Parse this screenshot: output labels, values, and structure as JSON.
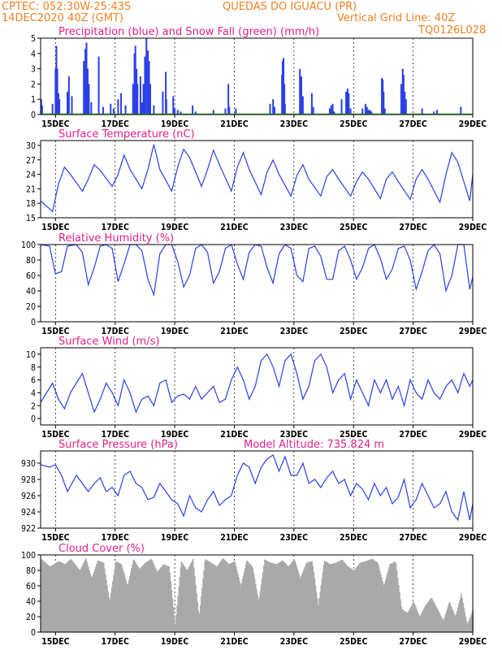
{
  "header": {
    "line1_left": "CPTEC:  052:30W-25:43S",
    "line1_right": "QUEDAS DO IGUACU (PR)",
    "line2_left": "14DEC2020 40Z (GMT)",
    "line2_mid": "Vertical Grid Line: 40Z",
    "line2_right": "TQ0126L028"
  },
  "colors": {
    "blue": "#2b3fe6",
    "green": "#22aa22",
    "gray": "#a9a9a9",
    "title": "#e0208a",
    "header": "#f08020"
  },
  "x_axis": {
    "start_day": 14.5,
    "end_day": 29.0,
    "ticks": [
      15,
      17,
      19,
      21,
      23,
      25,
      27,
      29
    ],
    "tick_labels": [
      "15DEC",
      "17DEC",
      "19DEC",
      "21DEC",
      "23DEC",
      "25DEC",
      "27DEC",
      "29DEC"
    ]
  },
  "chart_data": [
    {
      "id": "precip",
      "type": "bar",
      "title": "Precipitation (blue) and Snow Fall (green) (mm/h)",
      "ylim": [
        0,
        5
      ],
      "yticks": [
        0,
        1,
        2,
        3,
        4,
        5
      ],
      "series": [
        {
          "name": "Precipitation",
          "color": "#2b3fe6",
          "points": [
            [
              14.52,
              1.0
            ],
            [
              14.55,
              0.6
            ],
            [
              14.9,
              0.7
            ],
            [
              15.0,
              3.0
            ],
            [
              15.03,
              4.5
            ],
            [
              15.06,
              3.0
            ],
            [
              15.1,
              1.4
            ],
            [
              15.13,
              1.0
            ],
            [
              15.4,
              1.5
            ],
            [
              15.45,
              2.5
            ],
            [
              15.55,
              1.2
            ],
            [
              15.95,
              3.5
            ],
            [
              16.0,
              4.3
            ],
            [
              16.04,
              4.7
            ],
            [
              16.08,
              3.0
            ],
            [
              16.12,
              2.0
            ],
            [
              16.2,
              0.8
            ],
            [
              16.45,
              3.8
            ],
            [
              16.6,
              0.5
            ],
            [
              16.85,
              0.7
            ],
            [
              16.95,
              0.4
            ],
            [
              17.1,
              1.0
            ],
            [
              17.2,
              1.4
            ],
            [
              17.35,
              0.6
            ],
            [
              17.6,
              2.0
            ],
            [
              17.65,
              4.0
            ],
            [
              17.68,
              4.5
            ],
            [
              17.72,
              3.0
            ],
            [
              17.75,
              2.0
            ],
            [
              17.85,
              2.5
            ],
            [
              17.9,
              0.8
            ],
            [
              17.95,
              2.0
            ],
            [
              18.0,
              3.8
            ],
            [
              18.05,
              5.0
            ],
            [
              18.1,
              4.2
            ],
            [
              18.14,
              3.5
            ],
            [
              18.18,
              2.0
            ],
            [
              18.3,
              0.6
            ],
            [
              18.6,
              1.5
            ],
            [
              18.7,
              2.8
            ],
            [
              18.72,
              1.0
            ],
            [
              18.95,
              1.2
            ],
            [
              19.0,
              0.4
            ],
            [
              19.1,
              0.3
            ],
            [
              19.2,
              0.2
            ],
            [
              19.6,
              0.6
            ],
            [
              19.7,
              0.2
            ],
            [
              20.3,
              0.3
            ],
            [
              20.7,
              0.4
            ],
            [
              20.8,
              2.0
            ],
            [
              20.83,
              0.5
            ],
            [
              21.05,
              0.4
            ],
            [
              22.2,
              0.7
            ],
            [
              22.3,
              1.0
            ],
            [
              22.35,
              0.5
            ],
            [
              22.6,
              2.6
            ],
            [
              22.62,
              3.5
            ],
            [
              22.65,
              3.7
            ],
            [
              22.68,
              2.0
            ],
            [
              22.7,
              0.7
            ],
            [
              23.2,
              3.0
            ],
            [
              23.25,
              2.5
            ],
            [
              23.3,
              1.2
            ],
            [
              23.6,
              1.4
            ],
            [
              23.65,
              0.5
            ],
            [
              24.2,
              0.4
            ],
            [
              24.25,
              0.6
            ],
            [
              24.3,
              0.7
            ],
            [
              24.35,
              0.2
            ],
            [
              24.6,
              1.0
            ],
            [
              24.75,
              1.5
            ],
            [
              24.8,
              1.7
            ],
            [
              24.84,
              1.4
            ],
            [
              24.9,
              0.4
            ],
            [
              25.3,
              0.4
            ],
            [
              25.4,
              0.7
            ],
            [
              25.45,
              0.5
            ],
            [
              25.5,
              0.3
            ],
            [
              25.55,
              0.3
            ],
            [
              25.6,
              0.2
            ],
            [
              25.95,
              2.4
            ],
            [
              25.98,
              2.3
            ],
            [
              26.01,
              1.5
            ],
            [
              26.05,
              0.4
            ],
            [
              26.6,
              2.0
            ],
            [
              26.65,
              3.0
            ],
            [
              26.68,
              2.6
            ],
            [
              26.72,
              1.5
            ],
            [
              26.76,
              1.0
            ],
            [
              27.3,
              0.4
            ],
            [
              27.7,
              0.2
            ],
            [
              27.8,
              0.3
            ],
            [
              28.6,
              0.5
            ]
          ]
        },
        {
          "name": "Snow Fall",
          "color": "#22aa22",
          "points": []
        }
      ]
    },
    {
      "id": "temp",
      "type": "line",
      "title": "Surface Temperature (nC)",
      "ylim": [
        15,
        31
      ],
      "yticks": [
        15,
        18,
        21,
        24,
        27,
        30
      ],
      "color": "#2b3fe6",
      "x": [
        14.5,
        14.9,
        15.1,
        15.3,
        15.5,
        15.9,
        16.1,
        16.3,
        16.5,
        16.9,
        17.1,
        17.3,
        17.5,
        17.9,
        18.1,
        18.3,
        18.5,
        18.9,
        19.1,
        19.3,
        19.5,
        19.9,
        20.1,
        20.3,
        20.5,
        20.9,
        21.1,
        21.3,
        21.5,
        21.9,
        22.1,
        22.3,
        22.5,
        22.9,
        23.1,
        23.3,
        23.5,
        23.9,
        24.1,
        24.3,
        24.5,
        24.9,
        25.1,
        25.3,
        25.5,
        25.9,
        26.1,
        26.3,
        26.5,
        26.9,
        27.1,
        27.3,
        27.5,
        27.9,
        28.1,
        28.3,
        28.5,
        28.9,
        29.0
      ],
      "values": [
        18.5,
        16.3,
        22,
        25.5,
        24,
        20.5,
        23,
        26,
        24.8,
        21.5,
        24,
        28,
        25,
        21,
        25,
        30.2,
        25,
        20.5,
        25.5,
        29.2,
        27.5,
        21.5,
        25,
        29,
        26,
        20.5,
        25.5,
        28.5,
        25,
        19.8,
        24.5,
        27,
        24,
        19.5,
        23.8,
        26,
        23,
        19.5,
        23.5,
        25,
        23,
        19.5,
        22.5,
        24.5,
        23,
        19,
        23,
        24.5,
        22.5,
        18.8,
        23,
        25,
        23,
        18.2,
        24,
        28.5,
        26.5,
        18.5,
        24
      ]
    },
    {
      "id": "rh",
      "type": "line",
      "title": "Relative Humidity (%)",
      "ylim": [
        0,
        100
      ],
      "yticks": [
        0,
        20,
        40,
        60,
        80,
        100
      ],
      "color": "#2b3fe6",
      "x": [
        14.5,
        14.8,
        15.0,
        15.2,
        15.4,
        15.7,
        15.9,
        16.1,
        16.3,
        16.5,
        16.7,
        16.9,
        17.1,
        17.3,
        17.5,
        17.7,
        17.9,
        18.1,
        18.3,
        18.5,
        18.7,
        18.9,
        19.1,
        19.3,
        19.5,
        19.7,
        19.9,
        20.1,
        20.3,
        20.5,
        20.7,
        20.9,
        21.1,
        21.3,
        21.5,
        21.7,
        21.9,
        22.1,
        22.3,
        22.5,
        22.7,
        22.9,
        23.1,
        23.3,
        23.5,
        23.7,
        23.9,
        24.1,
        24.3,
        24.5,
        24.7,
        24.9,
        25.1,
        25.3,
        25.5,
        25.7,
        25.9,
        26.1,
        26.3,
        26.5,
        26.7,
        26.9,
        27.1,
        27.3,
        27.5,
        27.7,
        27.9,
        28.1,
        28.3,
        28.5,
        28.7,
        28.9,
        29.0
      ],
      "values": [
        100,
        98,
        62,
        65,
        98,
        100,
        90,
        48,
        70,
        98,
        100,
        95,
        52,
        75,
        100,
        100,
        92,
        55,
        35,
        88,
        100,
        100,
        78,
        45,
        60,
        95,
        100,
        90,
        50,
        65,
        95,
        100,
        75,
        55,
        90,
        100,
        98,
        70,
        50,
        88,
        100,
        95,
        60,
        52,
        95,
        98,
        85,
        55,
        55,
        92,
        98,
        80,
        55,
        70,
        95,
        100,
        82,
        55,
        68,
        95,
        98,
        80,
        42,
        65,
        92,
        100,
        88,
        40,
        60,
        100,
        100,
        42,
        58
      ]
    },
    {
      "id": "wind",
      "type": "line",
      "title": "Surface Wind (m/s)",
      "ylim": [
        -1,
        11
      ],
      "yticks": [
        0,
        2,
        4,
        6,
        8,
        10
      ],
      "color": "#2b3fe6",
      "x": [
        14.5,
        14.7,
        14.9,
        15.1,
        15.3,
        15.5,
        15.7,
        15.9,
        16.1,
        16.3,
        16.5,
        16.7,
        16.9,
        17.1,
        17.3,
        17.5,
        17.7,
        17.9,
        18.1,
        18.3,
        18.5,
        18.7,
        18.9,
        19.1,
        19.3,
        19.5,
        19.7,
        19.9,
        20.1,
        20.3,
        20.5,
        20.7,
        20.9,
        21.1,
        21.3,
        21.5,
        21.7,
        21.9,
        22.1,
        22.3,
        22.5,
        22.7,
        22.9,
        23.1,
        23.3,
        23.5,
        23.7,
        23.9,
        24.1,
        24.3,
        24.5,
        24.7,
        24.9,
        25.1,
        25.3,
        25.5,
        25.7,
        25.9,
        26.1,
        26.3,
        26.5,
        26.7,
        26.9,
        27.1,
        27.3,
        27.5,
        27.7,
        27.9,
        28.1,
        28.3,
        28.5,
        28.7,
        28.9,
        29.0
      ],
      "values": [
        2.5,
        4,
        5.5,
        3,
        1.5,
        4,
        5.5,
        7,
        4,
        1,
        3,
        5.5,
        4,
        2,
        6,
        4,
        1,
        3,
        3.5,
        2,
        5.5,
        6,
        2.5,
        3.5,
        3.8,
        3,
        5,
        3,
        4,
        5,
        2.5,
        3,
        6,
        8,
        6,
        3,
        5,
        9,
        10,
        8,
        5,
        9,
        10,
        7,
        3,
        5,
        9,
        10,
        8,
        4,
        6,
        7,
        3,
        6,
        4,
        2,
        6,
        4,
        6,
        3,
        5,
        2,
        6,
        4,
        3,
        6,
        4,
        3,
        5,
        6,
        4,
        7,
        5,
        6
      ]
    },
    {
      "id": "pressure",
      "type": "line",
      "title": "Surface Pressure (hPa)",
      "extra_label": "Model Altitude: 735.824 m",
      "ylim": [
        922,
        931.5
      ],
      "yticks": [
        922,
        924,
        926,
        928,
        930
      ],
      "color": "#2b3fe6",
      "x": [
        14.5,
        14.8,
        15.0,
        15.2,
        15.4,
        15.7,
        15.9,
        16.1,
        16.3,
        16.5,
        16.7,
        16.9,
        17.1,
        17.3,
        17.5,
        17.7,
        17.9,
        18.1,
        18.3,
        18.5,
        18.7,
        18.9,
        19.1,
        19.3,
        19.5,
        19.7,
        19.9,
        20.1,
        20.3,
        20.5,
        20.7,
        20.9,
        21.1,
        21.3,
        21.5,
        21.7,
        21.9,
        22.1,
        22.3,
        22.5,
        22.7,
        22.9,
        23.1,
        23.3,
        23.5,
        23.7,
        23.9,
        24.1,
        24.3,
        24.5,
        24.7,
        24.9,
        25.1,
        25.3,
        25.5,
        25.7,
        25.9,
        26.1,
        26.3,
        26.5,
        26.7,
        26.9,
        27.1,
        27.3,
        27.5,
        27.7,
        27.9,
        28.1,
        28.3,
        28.5,
        28.7,
        28.9,
        29.0
      ],
      "values": [
        929.8,
        929.5,
        929.8,
        928.5,
        926.5,
        928.5,
        927.5,
        926.5,
        927.5,
        928.2,
        926.5,
        927,
        926,
        928.5,
        929,
        927.5,
        927,
        925.5,
        925.8,
        927.5,
        926.5,
        925.5,
        925,
        923.5,
        926,
        924.5,
        924,
        925.5,
        926.5,
        924.8,
        925.5,
        926,
        928.5,
        930,
        929.5,
        927.5,
        929.5,
        930.5,
        931,
        929,
        930.8,
        928.5,
        928.5,
        930,
        927.5,
        928,
        927,
        928.2,
        929,
        927.5,
        928,
        926,
        927.5,
        926.8,
        925.5,
        927.5,
        926,
        927,
        925,
        925.8,
        928,
        924.5,
        925.5,
        927.5,
        926,
        924.5,
        925,
        926.5,
        924,
        923,
        926.5,
        923,
        925
      ]
    },
    {
      "id": "cloud",
      "type": "area",
      "title": "Cloud Cover (%)",
      "ylim": [
        0,
        100
      ],
      "yticks": [
        0,
        20,
        40,
        60,
        80,
        100
      ],
      "color": "#a9a9a9",
      "x": [
        14.5,
        14.8,
        15.1,
        15.3,
        15.5,
        15.8,
        16.0,
        16.2,
        16.4,
        16.6,
        16.8,
        17.0,
        17.2,
        17.4,
        17.6,
        17.8,
        18.0,
        18.2,
        18.4,
        18.6,
        18.8,
        19.0,
        19.2,
        19.4,
        19.6,
        19.8,
        20.0,
        20.2,
        20.4,
        20.6,
        20.8,
        21.0,
        21.2,
        21.4,
        21.6,
        21.8,
        22.0,
        22.2,
        22.4,
        22.6,
        22.8,
        23.0,
        23.2,
        23.4,
        23.6,
        23.8,
        24.0,
        24.2,
        24.4,
        24.6,
        24.8,
        25.0,
        25.2,
        25.4,
        25.6,
        25.8,
        26.0,
        26.2,
        26.4,
        26.6,
        26.8,
        27.0,
        27.2,
        27.4,
        27.6,
        27.8,
        28.0,
        28.2,
        28.4,
        28.6,
        28.8,
        29.0
      ],
      "values": [
        95,
        85,
        92,
        88,
        95,
        80,
        96,
        70,
        93,
        90,
        40,
        92,
        88,
        60,
        95,
        82,
        90,
        95,
        78,
        88,
        85,
        10,
        92,
        80,
        95,
        20,
        95,
        90,
        85,
        96,
        88,
        92,
        60,
        93,
        85,
        40,
        94,
        90,
        88,
        93,
        85,
        95,
        70,
        90,
        92,
        35,
        93,
        88,
        90,
        94,
        85,
        80,
        90,
        92,
        95,
        90,
        60,
        88,
        92,
        30,
        25,
        40,
        20,
        35,
        45,
        30,
        15,
        40,
        20,
        50,
        10,
        30
      ]
    }
  ]
}
